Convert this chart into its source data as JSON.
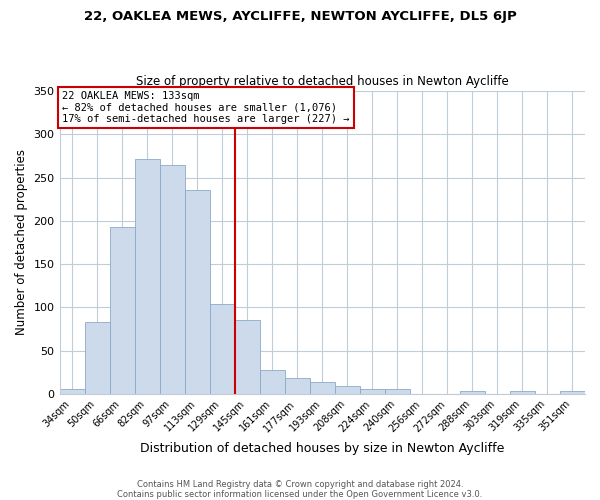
{
  "title": "22, OAKLEA MEWS, AYCLIFFE, NEWTON AYCLIFFE, DL5 6JP",
  "subtitle": "Size of property relative to detached houses in Newton Aycliffe",
  "xlabel": "Distribution of detached houses by size in Newton Aycliffe",
  "ylabel": "Number of detached properties",
  "categories": [
    "34sqm",
    "50sqm",
    "66sqm",
    "82sqm",
    "97sqm",
    "113sqm",
    "129sqm",
    "145sqm",
    "161sqm",
    "177sqm",
    "193sqm",
    "208sqm",
    "224sqm",
    "240sqm",
    "256sqm",
    "272sqm",
    "288sqm",
    "303sqm",
    "319sqm",
    "335sqm",
    "351sqm"
  ],
  "values": [
    6,
    83,
    193,
    272,
    265,
    236,
    104,
    85,
    27,
    18,
    14,
    9,
    6,
    5,
    0,
    0,
    3,
    0,
    3,
    0,
    3
  ],
  "bar_color": "#ccdaeb",
  "bar_edge_color": "#8aaac8",
  "vline_x": 6.5,
  "vline_color": "#cc0000",
  "ylim": [
    0,
    350
  ],
  "yticks": [
    0,
    50,
    100,
    150,
    200,
    250,
    300,
    350
  ],
  "annotation_title": "22 OAKLEA MEWS: 133sqm",
  "annotation_line1": "← 82% of detached houses are smaller (1,076)",
  "annotation_line2": "17% of semi-detached houses are larger (227) →",
  "annotation_box_color": "#cc0000",
  "footer_line1": "Contains HM Land Registry data © Crown copyright and database right 2024.",
  "footer_line2": "Contains public sector information licensed under the Open Government Licence v3.0.",
  "background_color": "#ffffff",
  "grid_color": "#c0ccd8"
}
